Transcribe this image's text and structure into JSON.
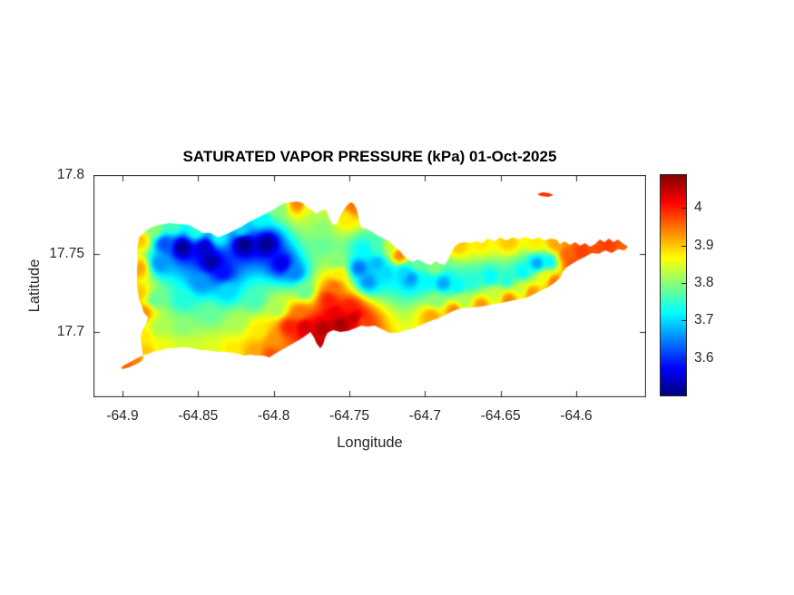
{
  "chart": {
    "title": "SATURATED VAPOR PRESSURE (kPa) 01-Oct-2025",
    "xlabel": "Longitude",
    "ylabel": "Latitude"
  },
  "axes": {
    "xlim": [
      -64.9192,
      -64.5538
    ],
    "ylim": [
      17.6584,
      17.8
    ],
    "xticks": [
      {
        "v": -64.9,
        "label": "-64.9"
      },
      {
        "v": -64.85,
        "label": "-64.85"
      },
      {
        "v": -64.8,
        "label": "-64.8"
      },
      {
        "v": -64.75,
        "label": "-64.75"
      },
      {
        "v": -64.7,
        "label": "-64.7"
      },
      {
        "v": -64.65,
        "label": "-64.65"
      },
      {
        "v": -64.6,
        "label": "-64.6"
      }
    ],
    "yticks": [
      {
        "v": 17.7,
        "label": "17.7"
      },
      {
        "v": 17.75,
        "label": "17.75"
      },
      {
        "v": 17.8,
        "label": "17.8"
      }
    ],
    "axis_color": "#262626",
    "tick_length": 6
  },
  "colorbar": {
    "clim": [
      3.5,
      4.09
    ],
    "colormap": "jet",
    "ticks": [
      {
        "v": 3.6,
        "label": "3.6"
      },
      {
        "v": 3.7,
        "label": "3.7"
      },
      {
        "v": 3.8,
        "label": "3.8"
      },
      {
        "v": 3.9,
        "label": "3.9"
      },
      {
        "v": 4.0,
        "label": "4"
      }
    ]
  },
  "chart_data": {
    "type": "heatmap",
    "subtype": "filled_contour_geomap",
    "title": "SATURATED VAPOR PRESSURE (kPa) 01-Oct-2025",
    "xlabel": "Longitude",
    "ylabel": "Latitude",
    "units": "kPa",
    "value_range": [
      3.5,
      4.09
    ],
    "grid": false,
    "legend_position": "colorbar-right",
    "island_outline": [
      [
        -64.8892,
        17.7602
      ],
      [
        -64.885,
        17.7642
      ],
      [
        -64.8802,
        17.7671
      ],
      [
        -64.8754,
        17.7683
      ],
      [
        -64.8688,
        17.7694
      ],
      [
        -64.8628,
        17.7688
      ],
      [
        -64.8568,
        17.7683
      ],
      [
        -64.852,
        17.766
      ],
      [
        -64.8472,
        17.7631
      ],
      [
        -64.8418,
        17.7631
      ],
      [
        -64.837,
        17.7602
      ],
      [
        -64.831,
        17.7625
      ],
      [
        -64.8262,
        17.7648
      ],
      [
        -64.8214,
        17.7671
      ],
      [
        -64.8166,
        17.77
      ],
      [
        -64.8118,
        17.7723
      ],
      [
        -64.807,
        17.7746
      ],
      [
        -64.8022,
        17.7769
      ],
      [
        -64.7974,
        17.7798
      ],
      [
        -64.7932,
        17.7821
      ],
      [
        -64.789,
        17.7827
      ],
      [
        -64.7848,
        17.7833
      ],
      [
        -64.7806,
        17.7821
      ],
      [
        -64.7776,
        17.7792
      ],
      [
        -64.7746,
        17.7775
      ],
      [
        -64.7716,
        17.7752
      ],
      [
        -64.7686,
        17.7775
      ],
      [
        -64.7656,
        17.7781
      ],
      [
        -64.7638,
        17.7746
      ],
      [
        -64.7626,
        17.7706
      ],
      [
        -64.7608,
        17.7682
      ],
      [
        -64.7584,
        17.7688
      ],
      [
        -64.7566,
        17.7729
      ],
      [
        -64.7548,
        17.7763
      ],
      [
        -64.7524,
        17.7798
      ],
      [
        -64.7494,
        17.7827
      ],
      [
        -64.747,
        17.7816
      ],
      [
        -64.7452,
        17.7781
      ],
      [
        -64.744,
        17.774
      ],
      [
        -64.7434,
        17.7694
      ],
      [
        -64.7422,
        17.7665
      ],
      [
        -64.7392,
        17.7659
      ],
      [
        -64.7356,
        17.7642
      ],
      [
        -64.732,
        17.7619
      ],
      [
        -64.7284,
        17.7602
      ],
      [
        -64.7248,
        17.7584
      ],
      [
        -64.7218,
        17.7561
      ],
      [
        -64.7194,
        17.7538
      ],
      [
        -64.7164,
        17.7515
      ],
      [
        -64.714,
        17.7486
      ],
      [
        -64.711,
        17.7463
      ],
      [
        -64.708,
        17.7445
      ],
      [
        -64.705,
        17.7463
      ],
      [
        -64.702,
        17.7451
      ],
      [
        -64.699,
        17.7434
      ],
      [
        -64.696,
        17.7428
      ],
      [
        -64.693,
        17.7451
      ],
      [
        -64.69,
        17.7434
      ],
      [
        -64.687,
        17.7428
      ],
      [
        -64.6846,
        17.7463
      ],
      [
        -64.6828,
        17.7503
      ],
      [
        -64.6804,
        17.7544
      ],
      [
        -64.6774,
        17.7567
      ],
      [
        -64.6738,
        17.7573
      ],
      [
        -64.6702,
        17.7567
      ],
      [
        -64.666,
        17.7578
      ],
      [
        -64.6624,
        17.7567
      ],
      [
        -64.6582,
        17.7596
      ],
      [
        -64.654,
        17.7578
      ],
      [
        -64.6504,
        17.7602
      ],
      [
        -64.6462,
        17.7584
      ],
      [
        -64.642,
        17.7602
      ],
      [
        -64.6378,
        17.759
      ],
      [
        -64.6336,
        17.7607
      ],
      [
        -64.6294,
        17.759
      ],
      [
        -64.6252,
        17.7602
      ],
      [
        -64.621,
        17.7584
      ],
      [
        -64.6168,
        17.7596
      ],
      [
        -64.6132,
        17.759
      ],
      [
        -64.6108,
        17.7561
      ],
      [
        -64.6078,
        17.7578
      ],
      [
        -64.6042,
        17.7555
      ],
      [
        -64.6006,
        17.7573
      ],
      [
        -64.5976,
        17.755
      ],
      [
        -64.594,
        17.7567
      ],
      [
        -64.591,
        17.7544
      ],
      [
        -64.5874,
        17.7561
      ],
      [
        -64.5844,
        17.759
      ],
      [
        -64.5814,
        17.7573
      ],
      [
        -64.5784,
        17.7596
      ],
      [
        -64.5754,
        17.7573
      ],
      [
        -64.5724,
        17.759
      ],
      [
        -64.5694,
        17.7567
      ],
      [
        -64.5658,
        17.7544
      ],
      [
        -64.5682,
        17.7521
      ],
      [
        -64.5724,
        17.7527
      ],
      [
        -64.5766,
        17.7503
      ],
      [
        -64.5808,
        17.7521
      ],
      [
        -64.585,
        17.7498
      ],
      [
        -64.5898,
        17.7503
      ],
      [
        -64.594,
        17.748
      ],
      [
        -64.5988,
        17.7457
      ],
      [
        -64.603,
        17.7434
      ],
      [
        -64.6066,
        17.7411
      ],
      [
        -64.609,
        17.7382
      ],
      [
        -64.6108,
        17.7347
      ],
      [
        -64.6138,
        17.7318
      ],
      [
        -64.618,
        17.7289
      ],
      [
        -64.6228,
        17.7266
      ],
      [
        -64.6276,
        17.7243
      ],
      [
        -64.6324,
        17.722
      ],
      [
        -64.6378,
        17.7209
      ],
      [
        -64.6438,
        17.7197
      ],
      [
        -64.6498,
        17.7185
      ],
      [
        -64.6564,
        17.7174
      ],
      [
        -64.663,
        17.7162
      ],
      [
        -64.6696,
        17.7156
      ],
      [
        -64.6762,
        17.7151
      ],
      [
        -64.6816,
        17.7133
      ],
      [
        -64.6864,
        17.711
      ],
      [
        -64.6912,
        17.7087
      ],
      [
        -64.6966,
        17.707
      ],
      [
        -64.702,
        17.7047
      ],
      [
        -64.7074,
        17.7023
      ],
      [
        -64.7128,
        17.7012
      ],
      [
        -64.7182,
        17.6995
      ],
      [
        -64.7236,
        17.6995
      ],
      [
        -64.7284,
        17.7018
      ],
      [
        -64.7332,
        17.7041
      ],
      [
        -64.738,
        17.7035
      ],
      [
        -64.7422,
        17.7041
      ],
      [
        -64.7464,
        17.7023
      ],
      [
        -64.7512,
        17.7006
      ],
      [
        -64.756,
        17.7
      ],
      [
        -64.7608,
        17.7012
      ],
      [
        -64.7644,
        17.6995
      ],
      [
        -64.7662,
        17.696
      ],
      [
        -64.7674,
        17.6919
      ],
      [
        -64.7692,
        17.6896
      ],
      [
        -64.7716,
        17.6925
      ],
      [
        -64.7734,
        17.6966
      ],
      [
        -64.7758,
        17.7
      ],
      [
        -64.7788,
        17.6977
      ],
      [
        -64.7824,
        17.6954
      ],
      [
        -64.7866,
        17.6931
      ],
      [
        -64.7908,
        17.6908
      ],
      [
        -64.795,
        17.6885
      ],
      [
        -64.7992,
        17.6862
      ],
      [
        -64.8028,
        17.6839
      ],
      [
        -64.807,
        17.685
      ],
      [
        -64.8112,
        17.685
      ],
      [
        -64.8154,
        17.6856
      ],
      [
        -64.8196,
        17.685
      ],
      [
        -64.8238,
        17.6862
      ],
      [
        -64.828,
        17.6868
      ],
      [
        -64.8322,
        17.6873
      ],
      [
        -64.8364,
        17.6873
      ],
      [
        -64.8406,
        17.6879
      ],
      [
        -64.8448,
        17.6885
      ],
      [
        -64.849,
        17.6885
      ],
      [
        -64.8532,
        17.6896
      ],
      [
        -64.8574,
        17.6902
      ],
      [
        -64.8616,
        17.6902
      ],
      [
        -64.8658,
        17.6896
      ],
      [
        -64.87,
        17.6896
      ],
      [
        -64.8742,
        17.6885
      ],
      [
        -64.8784,
        17.6879
      ],
      [
        -64.8826,
        17.6862
      ],
      [
        -64.8868,
        17.685
      ],
      [
        -64.8916,
        17.6827
      ],
      [
        -64.8958,
        17.6804
      ],
      [
        -64.8994,
        17.6787
      ],
      [
        -64.9012,
        17.6769
      ],
      [
        -64.8994,
        17.6764
      ],
      [
        -64.8958,
        17.6775
      ],
      [
        -64.8916,
        17.6792
      ],
      [
        -64.888,
        17.681
      ],
      [
        -64.8862,
        17.6833
      ],
      [
        -64.8868,
        17.6873
      ],
      [
        -64.8874,
        17.6919
      ],
      [
        -64.888,
        17.6966
      ],
      [
        -64.8868,
        17.7012
      ],
      [
        -64.8844,
        17.7052
      ],
      [
        -64.8832,
        17.7093
      ],
      [
        -64.8862,
        17.7128
      ],
      [
        -64.8874,
        17.7168
      ],
      [
        -64.8892,
        17.7209
      ],
      [
        -64.8898,
        17.7255
      ],
      [
        -64.8904,
        17.7301
      ],
      [
        -64.8904,
        17.7353
      ],
      [
        -64.8904,
        17.7405
      ],
      [
        -64.8898,
        17.7457
      ],
      [
        -64.8904,
        17.7509
      ],
      [
        -64.8898,
        17.7555
      ]
    ],
    "buck_island_outline": [
      [
        -64.6258,
        17.7879
      ],
      [
        -64.6222,
        17.789
      ],
      [
        -64.618,
        17.7885
      ],
      [
        -64.615,
        17.7873
      ],
      [
        -64.6186,
        17.7862
      ],
      [
        -64.6234,
        17.7867
      ]
    ],
    "samples": [
      [
        -64.861,
        17.7544,
        3.51
      ],
      [
        -64.8418,
        17.7451,
        3.52
      ],
      [
        -64.8202,
        17.7567,
        3.5
      ],
      [
        -64.8052,
        17.7567,
        3.51
      ],
      [
        -64.795,
        17.744,
        3.56
      ],
      [
        -64.834,
        17.7382,
        3.58
      ],
      [
        -64.846,
        17.7544,
        3.54
      ],
      [
        -64.873,
        17.7567,
        3.62
      ],
      [
        -64.876,
        17.744,
        3.66
      ],
      [
        -64.879,
        17.7659,
        3.8
      ],
      [
        -64.867,
        17.7683,
        3.76
      ],
      [
        -64.852,
        17.7648,
        3.74
      ],
      [
        -64.837,
        17.7607,
        3.72
      ],
      [
        -64.822,
        17.7659,
        3.7
      ],
      [
        -64.81,
        17.7729,
        3.72
      ],
      [
        -64.798,
        17.7798,
        3.8
      ],
      [
        -64.7842,
        17.7821,
        3.94
      ],
      [
        -64.777,
        17.7792,
        3.86
      ],
      [
        -64.8886,
        17.7584,
        3.9
      ],
      [
        -64.8898,
        17.7411,
        3.92
      ],
      [
        -64.8892,
        17.7255,
        3.9
      ],
      [
        -64.8862,
        17.7128,
        3.93
      ],
      [
        -64.8874,
        17.6977,
        3.88
      ],
      [
        -64.897,
        17.6798,
        3.96
      ],
      [
        -64.891,
        17.6827,
        3.94
      ],
      [
        -64.885,
        17.6856,
        3.9
      ],
      [
        -64.873,
        17.6902,
        3.86
      ],
      [
        -64.858,
        17.692,
        3.84
      ],
      [
        -64.843,
        17.6902,
        3.85
      ],
      [
        -64.828,
        17.689,
        3.88
      ],
      [
        -64.813,
        17.6873,
        3.92
      ],
      [
        -64.8028,
        17.6856,
        3.97
      ],
      [
        -64.861,
        17.7209,
        3.74
      ],
      [
        -64.843,
        17.7122,
        3.78
      ],
      [
        -64.825,
        17.7064,
        3.82
      ],
      [
        -64.81,
        17.7006,
        3.88
      ],
      [
        -64.801,
        17.6949,
        3.93
      ],
      [
        -64.849,
        17.7324,
        3.66
      ],
      [
        -64.831,
        17.7266,
        3.7
      ],
      [
        -64.813,
        17.7209,
        3.76
      ],
      [
        -64.798,
        17.7151,
        3.82
      ],
      [
        -64.861,
        17.7035,
        3.8
      ],
      [
        -64.876,
        17.7035,
        3.82
      ],
      [
        -64.879,
        17.7209,
        3.78
      ],
      [
        -64.786,
        17.7382,
        3.65
      ],
      [
        -64.78,
        17.7266,
        3.78
      ],
      [
        -64.7902,
        17.7035,
        4.0
      ],
      [
        -64.78,
        17.7035,
        4.04
      ],
      [
        -64.768,
        17.7023,
        4.06
      ],
      [
        -64.756,
        17.7052,
        4.07
      ],
      [
        -64.747,
        17.7093,
        4.05
      ],
      [
        -64.7698,
        17.6919,
        4.05
      ],
      [
        -64.7602,
        17.7122,
        4.03
      ],
      [
        -64.75,
        17.7162,
        4.0
      ],
      [
        -64.741,
        17.7064,
        3.98
      ],
      [
        -64.783,
        17.7122,
        3.95
      ],
      [
        -64.7638,
        17.7209,
        4.0
      ],
      [
        -64.7602,
        17.7295,
        3.95
      ],
      [
        -64.7578,
        17.737,
        3.88
      ],
      [
        -64.759,
        17.7451,
        3.8
      ],
      [
        -64.768,
        17.7555,
        3.78
      ],
      [
        -64.7698,
        17.7671,
        3.8
      ],
      [
        -64.774,
        17.7729,
        3.82
      ],
      [
        -64.7476,
        17.7804,
        3.95
      ],
      [
        -64.753,
        17.7729,
        3.88
      ],
      [
        -64.744,
        17.7411,
        3.64
      ],
      [
        -64.738,
        17.7324,
        3.66
      ],
      [
        -64.732,
        17.744,
        3.68
      ],
      [
        -64.726,
        17.7382,
        3.7
      ],
      [
        -64.741,
        17.7527,
        3.72
      ],
      [
        -64.732,
        17.7555,
        3.76
      ],
      [
        -64.717,
        17.7492,
        3.94
      ],
      [
        -64.723,
        17.7555,
        3.84
      ],
      [
        -64.714,
        17.7382,
        3.7
      ],
      [
        -64.7098,
        17.7347,
        3.66
      ],
      [
        -64.699,
        17.7324,
        3.72
      ],
      [
        -64.6882,
        17.7312,
        3.67
      ],
      [
        -64.678,
        17.7295,
        3.72
      ],
      [
        -64.669,
        17.7324,
        3.74
      ],
      [
        -64.657,
        17.7353,
        3.72
      ],
      [
        -64.6462,
        17.7335,
        3.74
      ],
      [
        -64.636,
        17.7382,
        3.72
      ],
      [
        -64.6258,
        17.744,
        3.67
      ],
      [
        -64.618,
        17.7451,
        3.72
      ],
      [
        -64.693,
        17.7209,
        3.8
      ],
      [
        -64.675,
        17.7209,
        3.82
      ],
      [
        -64.654,
        17.7238,
        3.84
      ],
      [
        -64.636,
        17.7278,
        3.84
      ],
      [
        -64.621,
        17.7353,
        3.86
      ],
      [
        -64.696,
        17.7104,
        3.92
      ],
      [
        -64.681,
        17.7139,
        3.94
      ],
      [
        -64.663,
        17.7174,
        3.93
      ],
      [
        -64.645,
        17.7209,
        3.94
      ],
      [
        -64.63,
        17.7255,
        3.93
      ],
      [
        -64.615,
        17.7324,
        3.95
      ],
      [
        -64.678,
        17.7555,
        3.9
      ],
      [
        -64.663,
        17.7573,
        3.88
      ],
      [
        -64.645,
        17.7578,
        3.9
      ],
      [
        -64.627,
        17.7578,
        3.88
      ],
      [
        -64.6138,
        17.7567,
        3.92
      ],
      [
        -64.606,
        17.7498,
        3.96
      ],
      [
        -64.597,
        17.7515,
        3.98
      ],
      [
        -64.588,
        17.7527,
        3.97
      ],
      [
        -64.579,
        17.7555,
        3.98
      ],
      [
        -64.5682,
        17.7544,
        3.96
      ],
      [
        -64.603,
        17.744,
        3.97
      ],
      [
        -64.705,
        17.744,
        3.78
      ],
      [
        -64.6942,
        17.7422,
        3.8
      ],
      [
        -64.6204,
        17.7879,
        3.99
      ]
    ]
  }
}
